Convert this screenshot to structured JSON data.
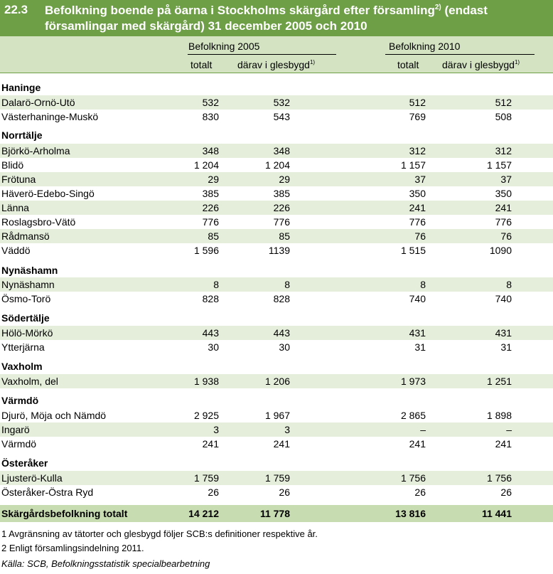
{
  "title": {
    "number": "22.3",
    "text_part1": "Befolkning boende på öarna i Stockholms skärgård efter församling",
    "sup": "2)",
    "text_part2": " (endast församlingar med skärgård) 31 december 2005 och 2010"
  },
  "header": {
    "group_2005": "Befolkning 2005",
    "group_2010": "Befolkning 2010",
    "col_total_2005": "totalt",
    "col_rural_2005": "därav i glesbygd",
    "col_total_2010": "totalt",
    "col_rural_2010": "därav i glesbygd",
    "col_rural_sup": "1)"
  },
  "sections": [
    {
      "name": "Haninge",
      "rows": [
        {
          "name": "Dalarö-Ornö-Utö",
          "t05": "532",
          "g05": "532",
          "t10": "512",
          "g10": "512"
        },
        {
          "name": "Västerhaninge-Muskö",
          "t05": "830",
          "g05": "543",
          "t10": "769",
          "g10": "508"
        }
      ]
    },
    {
      "name": "Norrtälje",
      "rows": [
        {
          "name": "Björkö-Arholma",
          "t05": "348",
          "g05": "348",
          "t10": "312",
          "g10": "312"
        },
        {
          "name": "Blidö",
          "t05": "1 204",
          "g05": "1 204",
          "t10": "1 157",
          "g10": "1 157"
        },
        {
          "name": "Frötuna",
          "t05": "29",
          "g05": "29",
          "t10": "37",
          "g10": "37"
        },
        {
          "name": "Häverö-Edebo-Singö",
          "t05": "385",
          "g05": "385",
          "t10": "350",
          "g10": "350"
        },
        {
          "name": "Länna",
          "t05": "226",
          "g05": "226",
          "t10": "241",
          "g10": "241"
        },
        {
          "name": "Roslagsbro-Vätö",
          "t05": "776",
          "g05": "776",
          "t10": "776",
          "g10": "776"
        },
        {
          "name": "Rådmansö",
          "t05": "85",
          "g05": "85",
          "t10": "76",
          "g10": "76"
        },
        {
          "name": "Väddö",
          "t05": "1 596",
          "g05": "1139",
          "t10": "1 515",
          "g10": "1090"
        }
      ]
    },
    {
      "name": "Nynäshamn",
      "rows": [
        {
          "name": "Nynäshamn",
          "t05": "8",
          "g05": "8",
          "t10": "8",
          "g10": "8"
        },
        {
          "name": "Ösmo-Torö",
          "t05": "828",
          "g05": "828",
          "t10": "740",
          "g10": "740"
        }
      ]
    },
    {
      "name": "Södertälje",
      "rows": [
        {
          "name": "Hölö-Mörkö",
          "t05": "443",
          "g05": "443",
          "t10": "431",
          "g10": "431"
        },
        {
          "name": "Ytterjärna",
          "t05": "30",
          "g05": "30",
          "t10": "31",
          "g10": "31"
        }
      ]
    },
    {
      "name": "Vaxholm",
      "rows": [
        {
          "name": "Vaxholm, del",
          "t05": "1 938",
          "g05": "1 206",
          "t10": "1 973",
          "g10": "1 251"
        }
      ]
    },
    {
      "name": "Värmdö",
      "rows": [
        {
          "name": "Djurö, Möja och Nämdö",
          "t05": "2 925",
          "g05": "1 967",
          "t10": "2 865",
          "g10": "1 898"
        },
        {
          "name": "Ingarö",
          "t05": "3",
          "g05": "3",
          "t10": "–",
          "g10": "–"
        },
        {
          "name": "Värmdö",
          "t05": "241",
          "g05": "241",
          "t10": "241",
          "g10": "241"
        }
      ]
    },
    {
      "name": "Österåker",
      "rows": [
        {
          "name": "Ljusterö-Kulla",
          "t05": "1 759",
          "g05": "1 759",
          "t10": "1 756",
          "g10": "1 756"
        },
        {
          "name": "Österåker-Östra Ryd",
          "t05": "26",
          "g05": "26",
          "t10": "26",
          "g10": "26"
        }
      ]
    }
  ],
  "total": {
    "name": "Skärgårdsbefolkning totalt",
    "t05": "14 212",
    "g05": "11 778",
    "t10": "13 816",
    "g10": "11 441"
  },
  "notes": {
    "note1": "1 Avgränsning av tätorter och glesbygd följer SCB:s definitioner respektive år.",
    "note2": "2 Enligt församlingsindelning 2011.",
    "source": "Källa: SCB, Befolkningsstatistik specialbearbetning"
  }
}
